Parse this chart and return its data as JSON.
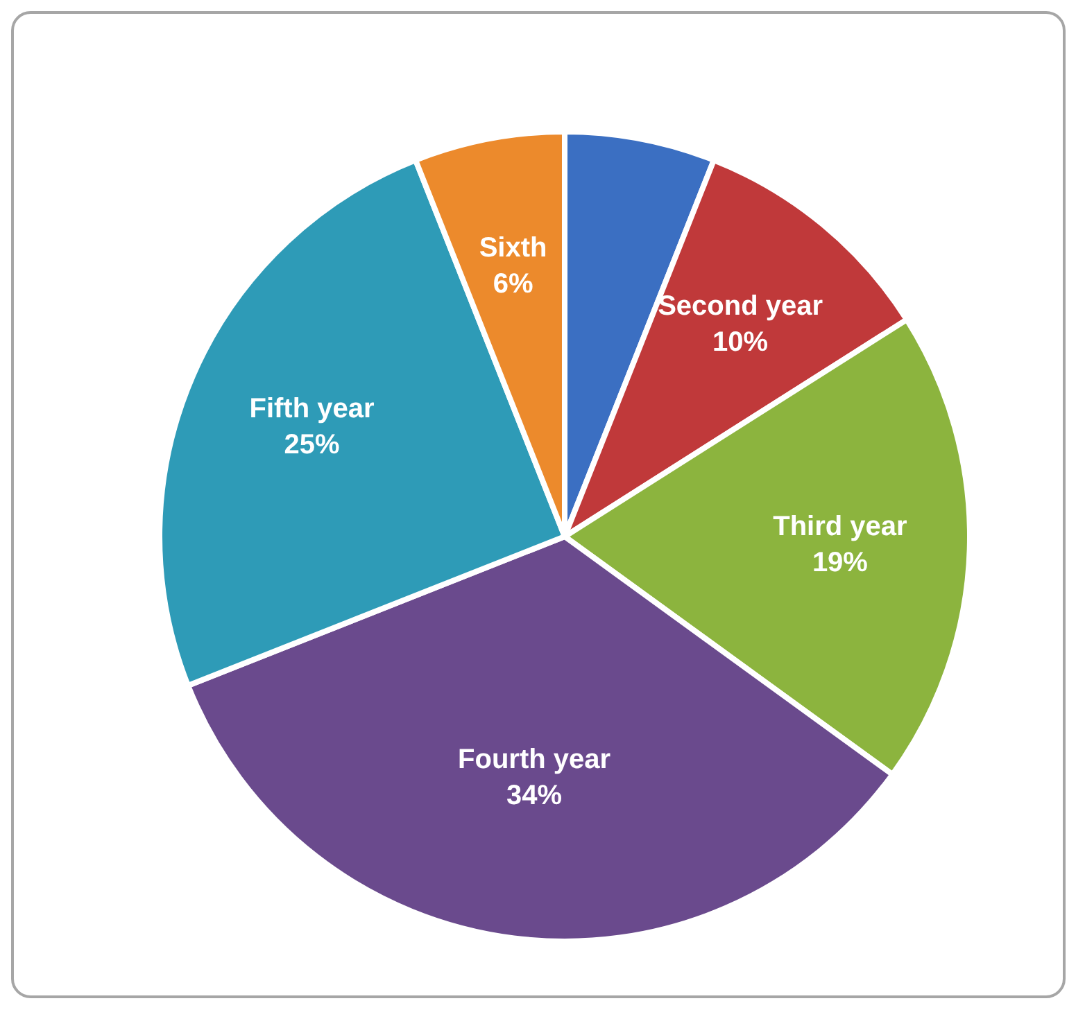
{
  "chart_data": {
    "type": "pie",
    "categories": [
      null,
      "Second year",
      "Third year",
      "Fourth year",
      "Fifth year",
      "Sixth"
    ],
    "values": [
      6,
      10,
      19,
      34,
      25,
      6
    ],
    "value_labels": [
      null,
      "10%",
      "19%",
      "34%",
      "25%",
      "6%"
    ],
    "colors": [
      "#3b6fc2",
      "#c0393a",
      "#8cb43e",
      "#6a4a8d",
      "#2e9bb7",
      "#ec8a2c"
    ],
    "legend": false
  }
}
